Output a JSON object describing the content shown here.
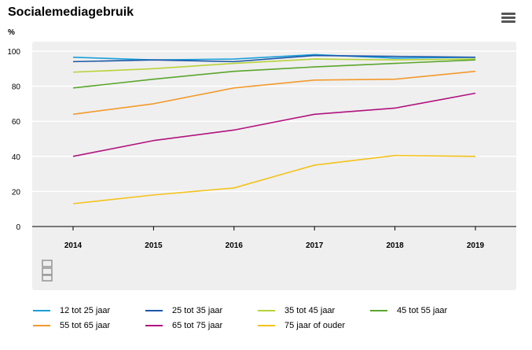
{
  "chart_data": {
    "type": "line",
    "title": "Socialemediagebruik",
    "ylabel": "%",
    "xlabel": "",
    "x": [
      "2014",
      "2015",
      "2016",
      "2017",
      "2018",
      "2019"
    ],
    "ylim": [
      0,
      100
    ],
    "yticks": [
      0,
      20,
      40,
      60,
      80,
      100
    ],
    "grid": true,
    "legend_position": "bottom",
    "series": [
      {
        "name": "12 tot 25 jaar",
        "color": "#1a9fd8",
        "values": [
          96.5,
          95,
          95.5,
          98,
          96,
          96.5
        ]
      },
      {
        "name": "25 tot 35 jaar",
        "color": "#1a56a8",
        "values": [
          94,
          95,
          94,
          97.5,
          97,
          96.5
        ]
      },
      {
        "name": "35 tot 45 jaar",
        "color": "#b7d33a",
        "values": [
          88,
          90,
          93,
          95.5,
          95,
          95.5
        ]
      },
      {
        "name": "45 tot 55 jaar",
        "color": "#5aa62c",
        "values": [
          79,
          84,
          88.5,
          91,
          93,
          95
        ]
      },
      {
        "name": "55 tot 65 jaar",
        "color": "#f39a2b",
        "values": [
          64,
          70,
          79,
          83.5,
          84,
          88.5
        ]
      },
      {
        "name": "65 tot 75 jaar",
        "color": "#b0127e",
        "values": [
          40,
          49,
          55,
          64,
          67.5,
          76
        ]
      },
      {
        "name": "75 jaar of ouder",
        "color": "#f5c21b",
        "values": [
          13,
          18,
          22,
          35,
          40.5,
          40
        ]
      }
    ]
  },
  "icons": {
    "menu": "hamburger-menu-icon",
    "logo": "cbs-logo"
  },
  "colors": {
    "plot_background": "#efefef",
    "gridline": "#ffffff",
    "axis": "#000000"
  }
}
